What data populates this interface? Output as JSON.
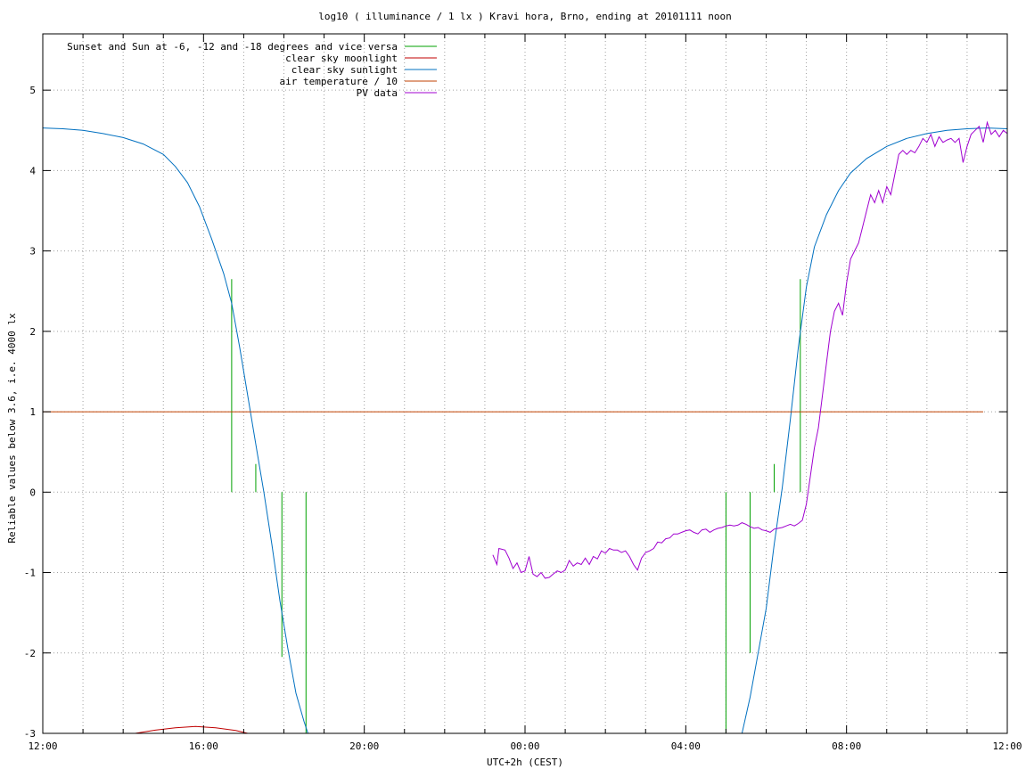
{
  "chart_data": {
    "type": "line",
    "title": "log10 ( illuminance / 1 lx ) Kravi hora, Brno, ending at 20101111 noon",
    "xlabel": "UTC+2h (CEST)",
    "ylabel": "Reliable values below 3.6, i.e. 4000 lx",
    "xlim": [
      0,
      24
    ],
    "ylim": [
      -3,
      5.7
    ],
    "grid": true,
    "legend_position": "top-left",
    "x_minor_ticks_every": 1,
    "x_major_ticks": [
      {
        "x": 0,
        "label": "12:00"
      },
      {
        "x": 4,
        "label": "16:00"
      },
      {
        "x": 8,
        "label": "20:00"
      },
      {
        "x": 12,
        "label": "00:00"
      },
      {
        "x": 16,
        "label": "04:00"
      },
      {
        "x": 20,
        "label": "08:00"
      },
      {
        "x": 24,
        "label": "12:00"
      }
    ],
    "y_ticks": [
      {
        "y": -3,
        "label": "-3"
      },
      {
        "y": -2,
        "label": "-2"
      },
      {
        "y": -1,
        "label": "-1"
      },
      {
        "y": 0,
        "label": "0"
      },
      {
        "y": 1,
        "label": "1"
      },
      {
        "y": 2,
        "label": "2"
      },
      {
        "y": 3,
        "label": "3"
      },
      {
        "y": 4,
        "label": "4"
      },
      {
        "y": 5,
        "label": "5"
      }
    ],
    "series": [
      {
        "name": "Sunset and Sun at -6, -12 and -18 degrees and vice versa",
        "color": "#00a000",
        "kind": "impulses",
        "points": [
          [
            4.7,
            2.65
          ],
          [
            5.3,
            0.35
          ],
          [
            5.95,
            -2.05
          ],
          [
            6.55,
            -3.0
          ],
          [
            17.0,
            -3.0
          ],
          [
            17.6,
            -2.0
          ],
          [
            18.2,
            0.35
          ],
          [
            18.85,
            2.65
          ]
        ]
      },
      {
        "name": "clear sky moonlight",
        "color": "#c00000",
        "points": [
          [
            2.3,
            -3.0
          ],
          [
            2.8,
            -2.96
          ],
          [
            3.3,
            -2.93
          ],
          [
            3.8,
            -2.915
          ],
          [
            4.3,
            -2.93
          ],
          [
            4.8,
            -2.965
          ],
          [
            5.1,
            -3.0
          ]
        ]
      },
      {
        "name": "clear sky sunlight",
        "color": "#0070c0",
        "points": [
          [
            0,
            4.53
          ],
          [
            0.5,
            4.52
          ],
          [
            1.0,
            4.5
          ],
          [
            1.5,
            4.46
          ],
          [
            2.0,
            4.41
          ],
          [
            2.5,
            4.33
          ],
          [
            3.0,
            4.2
          ],
          [
            3.3,
            4.05
          ],
          [
            3.6,
            3.85
          ],
          [
            3.9,
            3.55
          ],
          [
            4.2,
            3.15
          ],
          [
            4.5,
            2.72
          ],
          [
            4.7,
            2.35
          ],
          [
            4.9,
            1.8
          ],
          [
            5.1,
            1.2
          ],
          [
            5.3,
            0.6
          ],
          [
            5.5,
            0.0
          ],
          [
            5.7,
            -0.65
          ],
          [
            5.9,
            -1.35
          ],
          [
            6.1,
            -1.95
          ],
          [
            6.3,
            -2.5
          ],
          [
            6.5,
            -2.85
          ],
          [
            6.6,
            -3.0
          ],
          [
            17.4,
            -3.0
          ],
          [
            17.6,
            -2.55
          ],
          [
            17.8,
            -2.0
          ],
          [
            18.0,
            -1.45
          ],
          [
            18.2,
            -0.65
          ],
          [
            18.4,
            0.05
          ],
          [
            18.6,
            0.9
          ],
          [
            18.8,
            1.8
          ],
          [
            19.0,
            2.55
          ],
          [
            19.2,
            3.05
          ],
          [
            19.5,
            3.45
          ],
          [
            19.8,
            3.75
          ],
          [
            20.1,
            3.97
          ],
          [
            20.5,
            4.15
          ],
          [
            21.0,
            4.3
          ],
          [
            21.5,
            4.4
          ],
          [
            22.0,
            4.46
          ],
          [
            22.5,
            4.5
          ],
          [
            23.0,
            4.52
          ],
          [
            23.5,
            4.53
          ],
          [
            24.0,
            4.52
          ]
        ]
      },
      {
        "name": "air temperature / 10",
        "color": "#c04000",
        "points": [
          [
            0,
            1.0
          ],
          [
            23.4,
            1.0
          ]
        ]
      },
      {
        "name": "PV data",
        "color": "#a000d0",
        "points": [
          [
            11.2,
            -0.78
          ],
          [
            11.3,
            -0.9
          ],
          [
            11.35,
            -0.7
          ],
          [
            11.5,
            -0.72
          ],
          [
            11.6,
            -0.82
          ],
          [
            11.7,
            -0.95
          ],
          [
            11.8,
            -0.88
          ],
          [
            11.9,
            -1.0
          ],
          [
            12.0,
            -0.98
          ],
          [
            12.1,
            -0.8
          ],
          [
            12.2,
            -1.02
          ],
          [
            12.3,
            -1.05
          ],
          [
            12.4,
            -1.0
          ],
          [
            12.5,
            -1.07
          ],
          [
            12.6,
            -1.06
          ],
          [
            12.7,
            -1.02
          ],
          [
            12.8,
            -0.98
          ],
          [
            12.9,
            -1.0
          ],
          [
            13.0,
            -0.97
          ],
          [
            13.1,
            -0.85
          ],
          [
            13.2,
            -0.92
          ],
          [
            13.3,
            -0.88
          ],
          [
            13.4,
            -0.9
          ],
          [
            13.5,
            -0.82
          ],
          [
            13.6,
            -0.9
          ],
          [
            13.7,
            -0.8
          ],
          [
            13.8,
            -0.83
          ],
          [
            13.9,
            -0.73
          ],
          [
            14.0,
            -0.76
          ],
          [
            14.1,
            -0.7
          ],
          [
            14.2,
            -0.72
          ],
          [
            14.3,
            -0.72
          ],
          [
            14.4,
            -0.75
          ],
          [
            14.5,
            -0.73
          ],
          [
            14.6,
            -0.8
          ],
          [
            14.7,
            -0.9
          ],
          [
            14.8,
            -0.97
          ],
          [
            14.9,
            -0.82
          ],
          [
            15.0,
            -0.75
          ],
          [
            15.1,
            -0.73
          ],
          [
            15.2,
            -0.7
          ],
          [
            15.3,
            -0.62
          ],
          [
            15.4,
            -0.63
          ],
          [
            15.5,
            -0.58
          ],
          [
            15.6,
            -0.57
          ],
          [
            15.7,
            -0.52
          ],
          [
            15.8,
            -0.52
          ],
          [
            15.9,
            -0.5
          ],
          [
            16.0,
            -0.48
          ],
          [
            16.1,
            -0.47
          ],
          [
            16.2,
            -0.5
          ],
          [
            16.3,
            -0.52
          ],
          [
            16.4,
            -0.47
          ],
          [
            16.5,
            -0.46
          ],
          [
            16.6,
            -0.5
          ],
          [
            16.7,
            -0.47
          ],
          [
            16.8,
            -0.45
          ],
          [
            16.9,
            -0.44
          ],
          [
            17.0,
            -0.42
          ],
          [
            17.1,
            -0.41
          ],
          [
            17.2,
            -0.42
          ],
          [
            17.3,
            -0.41
          ],
          [
            17.4,
            -0.38
          ],
          [
            17.5,
            -0.4
          ],
          [
            17.6,
            -0.43
          ],
          [
            17.7,
            -0.45
          ],
          [
            17.8,
            -0.44
          ],
          [
            17.9,
            -0.47
          ],
          [
            18.0,
            -0.48
          ],
          [
            18.1,
            -0.5
          ],
          [
            18.2,
            -0.46
          ],
          [
            18.3,
            -0.45
          ],
          [
            18.4,
            -0.44
          ],
          [
            18.5,
            -0.42
          ],
          [
            18.6,
            -0.4
          ],
          [
            18.7,
            -0.42
          ],
          [
            18.8,
            -0.39
          ],
          [
            18.9,
            -0.35
          ],
          [
            19.0,
            -0.15
          ],
          [
            19.1,
            0.2
          ],
          [
            19.2,
            0.55
          ],
          [
            19.3,
            0.8
          ],
          [
            19.4,
            1.2
          ],
          [
            19.5,
            1.6
          ],
          [
            19.6,
            2.0
          ],
          [
            19.7,
            2.25
          ],
          [
            19.8,
            2.35
          ],
          [
            19.9,
            2.2
          ],
          [
            20.0,
            2.6
          ],
          [
            20.1,
            2.9
          ],
          [
            20.2,
            3.0
          ],
          [
            20.3,
            3.1
          ],
          [
            20.4,
            3.3
          ],
          [
            20.5,
            3.5
          ],
          [
            20.6,
            3.7
          ],
          [
            20.7,
            3.6
          ],
          [
            20.8,
            3.75
          ],
          [
            20.9,
            3.6
          ],
          [
            21.0,
            3.8
          ],
          [
            21.1,
            3.7
          ],
          [
            21.2,
            3.95
          ],
          [
            21.3,
            4.2
          ],
          [
            21.4,
            4.25
          ],
          [
            21.5,
            4.2
          ],
          [
            21.6,
            4.25
          ],
          [
            21.7,
            4.22
          ],
          [
            21.8,
            4.3
          ],
          [
            21.9,
            4.4
          ],
          [
            22.0,
            4.35
          ],
          [
            22.1,
            4.45
          ],
          [
            22.2,
            4.3
          ],
          [
            22.3,
            4.42
          ],
          [
            22.4,
            4.35
          ],
          [
            22.5,
            4.38
          ],
          [
            22.6,
            4.4
          ],
          [
            22.7,
            4.35
          ],
          [
            22.8,
            4.4
          ],
          [
            22.9,
            4.1
          ],
          [
            23.0,
            4.3
          ],
          [
            23.1,
            4.45
          ],
          [
            23.2,
            4.5
          ],
          [
            23.3,
            4.55
          ],
          [
            23.4,
            4.35
          ],
          [
            23.5,
            4.6
          ],
          [
            23.6,
            4.45
          ],
          [
            23.7,
            4.5
          ],
          [
            23.8,
            4.42
          ],
          [
            23.9,
            4.5
          ],
          [
            24.0,
            4.46
          ]
        ]
      }
    ]
  }
}
